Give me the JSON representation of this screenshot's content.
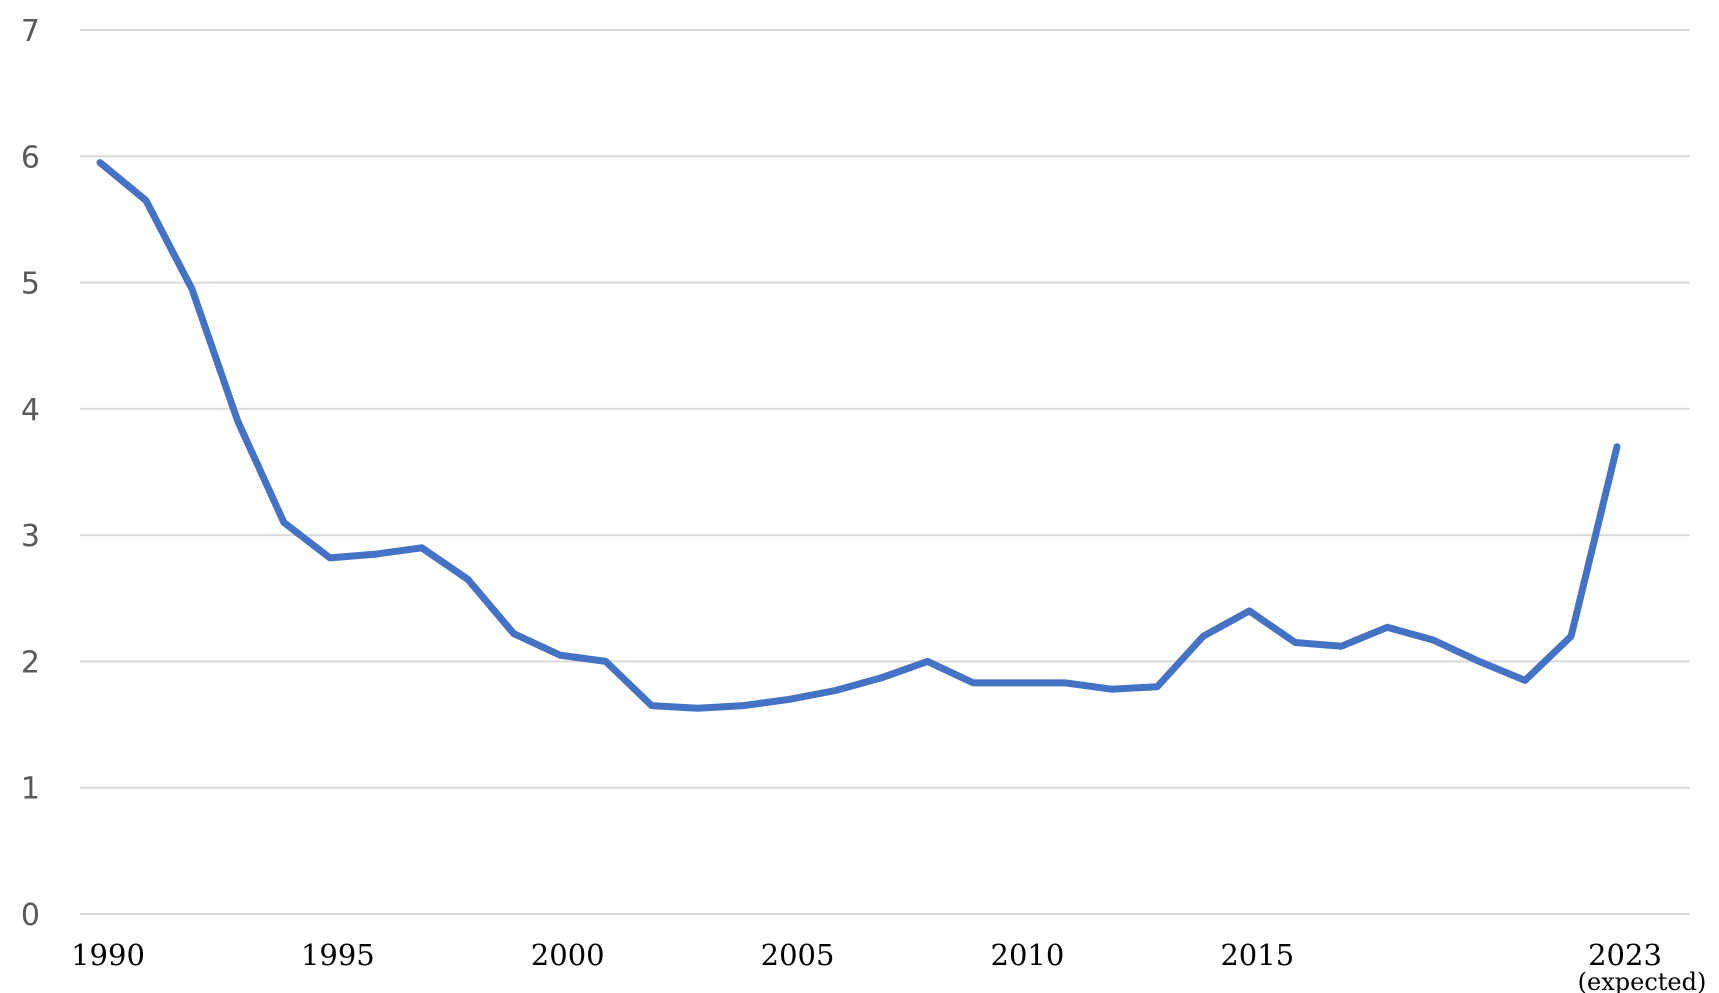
{
  "chart_data": {
    "type": "line",
    "title": "",
    "xlabel": "",
    "ylabel": "",
    "ylim": [
      0,
      7
    ],
    "yticks": [
      "0",
      "1",
      "2",
      "3",
      "4",
      "5",
      "6",
      "7"
    ],
    "xlim": [
      1990,
      2024
    ],
    "xticks": [
      {
        "year": 1990,
        "label": "1990"
      },
      {
        "year": 1995,
        "label": "1995"
      },
      {
        "year": 2000,
        "label": "2000"
      },
      {
        "year": 2005,
        "label": "2005"
      },
      {
        "year": 2010,
        "label": "2010"
      },
      {
        "year": 2015,
        "label": "2015"
      },
      {
        "year": 2023,
        "label": "2023",
        "sublabel": "(expected)"
      }
    ],
    "grid": true,
    "legend": "none",
    "series": [
      {
        "color": "#4472c4",
        "x": [
          1990,
          1991,
          1992,
          1993,
          1994,
          1995,
          1996,
          1997,
          1998,
          1999,
          2000,
          2001,
          2002,
          2003,
          2004,
          2005,
          2006,
          2007,
          2008,
          2009,
          2010,
          2011,
          2012,
          2013,
          2014,
          2015,
          2016,
          2017,
          2018,
          2019,
          2020,
          2021,
          2022,
          2023
        ],
        "values": [
          5.95,
          5.65,
          4.95,
          3.9,
          3.1,
          2.82,
          2.85,
          2.9,
          2.65,
          2.22,
          2.05,
          2.0,
          1.65,
          1.63,
          1.65,
          1.7,
          1.77,
          1.87,
          2.0,
          1.83,
          1.83,
          1.83,
          1.78,
          1.8,
          2.2,
          2.4,
          2.15,
          2.12,
          2.27,
          2.17,
          2.0,
          1.85,
          2.2,
          3.7
        ]
      }
    ]
  }
}
